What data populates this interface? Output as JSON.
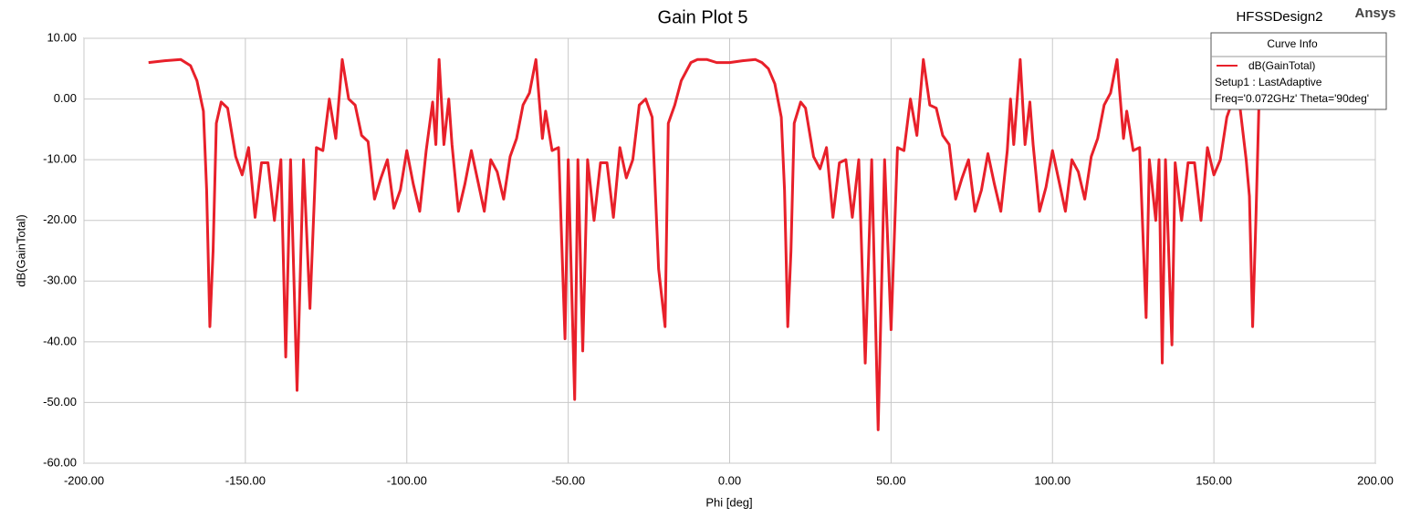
{
  "chart_data": {
    "type": "line",
    "title": "Gain Plot 5",
    "design": "HFSSDesign2",
    "brand": "Ansys",
    "xlabel": "Phi [deg]",
    "ylabel": "dB(GainTotal)",
    "xlim": [
      -200,
      200
    ],
    "ylim": [
      -60,
      10
    ],
    "xticks": [
      {
        "value": -200,
        "label": "-200.00"
      },
      {
        "value": -150,
        "label": "-150.00"
      },
      {
        "value": -100,
        "label": "-100.00"
      },
      {
        "value": -50,
        "label": "-50.00"
      },
      {
        "value": 0,
        "label": "0.00"
      },
      {
        "value": 50,
        "label": "50.00"
      },
      {
        "value": 100,
        "label": "100.00"
      },
      {
        "value": 150,
        "label": "150.00"
      },
      {
        "value": 200,
        "label": "200.00"
      }
    ],
    "yticks": [
      {
        "value": 10,
        "label": "10.00"
      },
      {
        "value": 0,
        "label": "0.00"
      },
      {
        "value": -10,
        "label": "-10.00"
      },
      {
        "value": -20,
        "label": "-20.00"
      },
      {
        "value": -30,
        "label": "-30.00"
      },
      {
        "value": -40,
        "label": "-40.00"
      },
      {
        "value": -50,
        "label": "-50.00"
      },
      {
        "value": -60,
        "label": "-60.00"
      }
    ],
    "grid": true,
    "legend_title": "Curve Info",
    "legend_details": [
      "Setup1 : LastAdaptive",
      "Freq='0.072GHz' Theta='90deg'"
    ],
    "x": [
      -180,
      -175,
      -170,
      -167,
      -165,
      -163,
      -162,
      -161,
      -160,
      -159,
      -157.5,
      -155.5,
      -153,
      -151,
      -149,
      -147,
      -145,
      -143,
      -141,
      -139,
      -137.5,
      -136,
      -134,
      -132,
      -130,
      -128,
      -126,
      -124,
      -122,
      -120,
      -118,
      -116,
      -114,
      -112,
      -110,
      -108,
      -106,
      -104,
      -102,
      -100,
      -98,
      -96,
      -94,
      -92,
      -91,
      -90,
      -88.5,
      -87,
      -86,
      -84,
      -82,
      -80,
      -78,
      -76,
      -74,
      -72,
      -70,
      -68,
      -66,
      -64,
      -62,
      -60,
      -58,
      -57,
      -55,
      -53,
      -51,
      -50,
      -48,
      -47,
      -45.5,
      -44,
      -42,
      -40,
      -38,
      -36,
      -34,
      -32,
      -30,
      -28,
      -26,
      -24,
      -22,
      -20,
      -19,
      -17,
      -15,
      -12,
      -10,
      -7,
      -4,
      0,
      4,
      8,
      10,
      12,
      14,
      16,
      17,
      18,
      19,
      20,
      22,
      23.5,
      26,
      28,
      30,
      32,
      34,
      36,
      38,
      40,
      42,
      44,
      46,
      48,
      50,
      52,
      54,
      56,
      58,
      60,
      62,
      64,
      66,
      68,
      70,
      72,
      74,
      76,
      78,
      80,
      82,
      84,
      86,
      87,
      88,
      90,
      91.5,
      93,
      94,
      96,
      98,
      100,
      102,
      104,
      106,
      108,
      110,
      112,
      114,
      116,
      118,
      120,
      122,
      123,
      125,
      127,
      129,
      130,
      132,
      133,
      134,
      135,
      137,
      138,
      140,
      142,
      144,
      146,
      148,
      150,
      152,
      154,
      156,
      158,
      160,
      161,
      162,
      163,
      164
    ],
    "series": [
      {
        "name": "dB(GainTotal)",
        "color": "#e8202a",
        "values": [
          6,
          6.3,
          6.5,
          5.5,
          3,
          -2,
          -15,
          -37.5,
          -25,
          -4,
          -0.5,
          -1.5,
          -9.5,
          -12.5,
          -8,
          -19.5,
          -10.5,
          -10.5,
          -20,
          -10,
          -42.5,
          -10,
          -48,
          -10,
          -34.5,
          -8,
          -8.5,
          0,
          -6.5,
          6.5,
          0,
          -1,
          -6,
          -7,
          -16.5,
          -13,
          -10,
          -18,
          -15,
          -8.5,
          -14,
          -18.5,
          -8.5,
          -0.5,
          -7.5,
          6.5,
          -7.5,
          0,
          -7.5,
          -18.5,
          -14,
          -8.5,
          -13.5,
          -18.5,
          -10,
          -12,
          -16.5,
          -9.5,
          -6.5,
          -1,
          1,
          6.5,
          -6.5,
          -2,
          -8.5,
          -8,
          -39.5,
          -10,
          -49.5,
          -10,
          -41.5,
          -10,
          -20,
          -10.5,
          -10.5,
          -19.5,
          -8,
          -13,
          -10,
          -1,
          0,
          -3,
          -28,
          -37.5,
          -4,
          -1,
          3,
          6,
          6.5,
          6.5,
          6,
          6,
          6.3,
          6.5,
          6,
          5,
          2.5,
          -3,
          -15,
          -37.5,
          -25,
          -4,
          -0.5,
          -1.5,
          -9.5,
          -11.5,
          -8,
          -19.5,
          -10.5,
          -10,
          -19.5,
          -10,
          -43.5,
          -10,
          -54.5,
          -10,
          -38,
          -8,
          -8.5,
          0,
          -6,
          6.5,
          -1,
          -1.5,
          -6,
          -7.5,
          -16.5,
          -13,
          -10,
          -18.5,
          -15,
          -9,
          -14,
          -18.5,
          -8.5,
          0,
          -7.5,
          6.5,
          -7.5,
          -0.5,
          -7.5,
          -18.5,
          -14.5,
          -8.5,
          -13.5,
          -18.5,
          -10,
          -12,
          -16.5,
          -9.5,
          -6.5,
          -1,
          1,
          6.5,
          -6.5,
          -2,
          -8.5,
          -8,
          -36,
          -10,
          -20,
          -10,
          -43.5,
          -10,
          -40.5,
          -10.5,
          -20,
          -10.5,
          -10.5,
          -20,
          -8,
          -12.5,
          -10,
          -3,
          0,
          -1,
          -10,
          -16,
          -37.5,
          -20,
          0
        ]
      }
    ]
  }
}
